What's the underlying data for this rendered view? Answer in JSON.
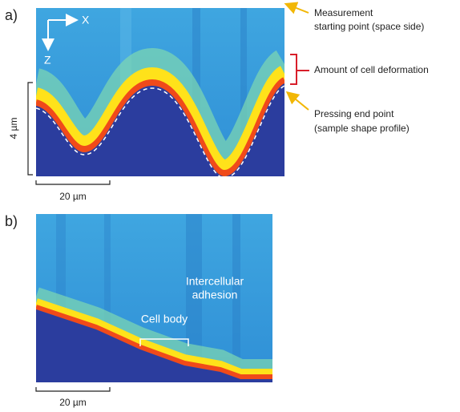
{
  "panels": [
    {
      "label": "a)",
      "axes": {
        "x": "X",
        "z": "Z"
      },
      "annotations": {
        "start": [
          "Measurement",
          "starting point (space side)"
        ],
        "deformation": "Amount of cell deformation",
        "end": [
          "Pressing end point",
          "(sample shape profile)"
        ]
      },
      "scale_bars": {
        "horizontal": "20 µm",
        "vertical": "4 µm"
      }
    },
    {
      "label": "b)",
      "annotations": {
        "adhesion": [
          "Intercellular",
          "adhesion"
        ],
        "cell_body": "Cell body"
      },
      "scale_bars": {
        "horizontal": "20 µm"
      }
    }
  ]
}
